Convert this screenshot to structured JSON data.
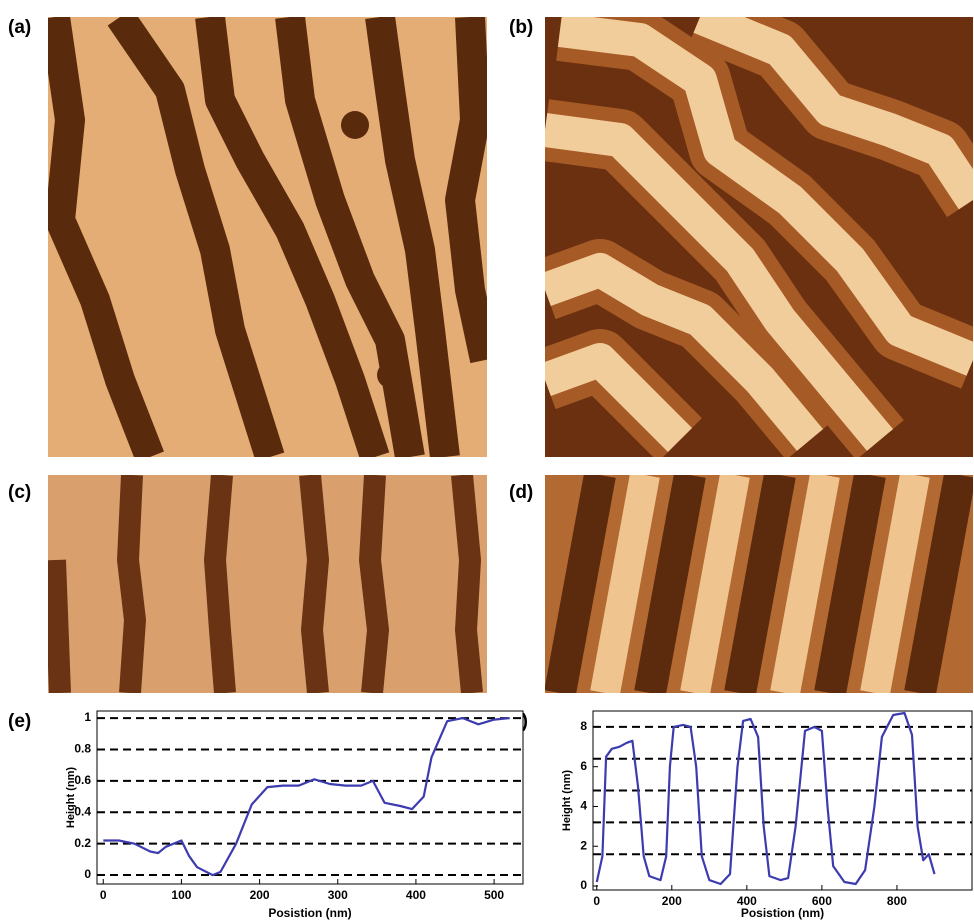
{
  "panel_labels": [
    "(a)",
    "(b)",
    "(c)",
    "(d)",
    "(e)",
    "(f)"
  ],
  "chart_data": [
    {
      "type": "line",
      "xlabel": "Posistion (nm)",
      "ylabel": "Height (nm)",
      "color": "#3c3cb0",
      "x": [
        0,
        20,
        40,
        60,
        70,
        80,
        100,
        110,
        120,
        140,
        150,
        170,
        190,
        210,
        230,
        250,
        270,
        290,
        310,
        330,
        345,
        360,
        380,
        395,
        410,
        420,
        440,
        460,
        480,
        500,
        520
      ],
      "values": [
        0.22,
        0.22,
        0.2,
        0.15,
        0.14,
        0.18,
        0.22,
        0.12,
        0.05,
        0.0,
        0.02,
        0.2,
        0.45,
        0.56,
        0.57,
        0.57,
        0.61,
        0.58,
        0.57,
        0.57,
        0.6,
        0.46,
        0.44,
        0.42,
        0.5,
        0.75,
        0.98,
        1.0,
        0.96,
        0.99,
        1.0
      ],
      "xlim": [
        -8,
        537
      ],
      "ylim": [
        -0.057,
        1.045
      ],
      "xticks": [
        0,
        100,
        200,
        300,
        400,
        500
      ],
      "yticks": [
        0,
        0.2,
        0.4,
        0.6,
        0.8,
        1
      ],
      "hlines": [
        0,
        0.2,
        0.4,
        0.6,
        0.8,
        1
      ]
    },
    {
      "type": "line",
      "xlabel": "Posistion (nm)",
      "ylabel": "Height (nm)",
      "color": "#3c3cb0",
      "x": [
        0,
        15,
        25,
        40,
        60,
        80,
        95,
        110,
        125,
        140,
        170,
        185,
        195,
        205,
        230,
        250,
        265,
        280,
        300,
        330,
        355,
        375,
        390,
        410,
        430,
        445,
        460,
        490,
        510,
        530,
        555,
        580,
        600,
        615,
        630,
        660,
        690,
        715,
        740,
        760,
        790,
        820,
        840,
        855,
        870,
        885,
        900
      ],
      "values": [
        0.2,
        1.5,
        6.5,
        6.9,
        7.0,
        7.2,
        7.3,
        5,
        1.5,
        0.5,
        0.3,
        1.5,
        6,
        8.0,
        8.1,
        8.0,
        6,
        1.5,
        0.3,
        0.1,
        0.6,
        6,
        8.3,
        8.4,
        7.5,
        3,
        0.5,
        0.3,
        0.4,
        3,
        7.8,
        8.0,
        7.8,
        4,
        1,
        0.2,
        0.1,
        0.8,
        4,
        7.5,
        8.6,
        8.7,
        7.6,
        3,
        1.3,
        1.6,
        0.6
      ],
      "xlim": [
        -10,
        1000
      ],
      "ylim": [
        -0.2,
        8.8
      ],
      "xticks": [
        0,
        200,
        400,
        600,
        800
      ],
      "yticks": [
        0,
        2,
        4,
        6,
        8
      ],
      "hlines": [
        1.6,
        3.2,
        4.8,
        6.4,
        8
      ]
    }
  ]
}
